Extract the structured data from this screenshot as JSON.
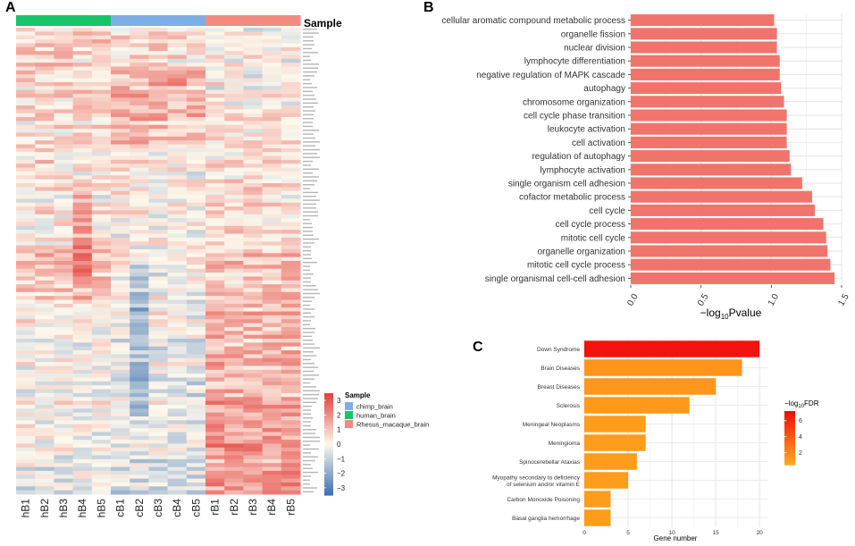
{
  "panels": {
    "a": "A",
    "b": "B",
    "c": "C"
  },
  "colors": {
    "chimp": "#7eaee7",
    "human": "#18c46a",
    "rhesus": "#f38b81",
    "bar_b": "#f0746b",
    "scale_low": "#3f74b4",
    "scale_mid": "#fdf8ec",
    "scale_high": "#e3433f",
    "fdr_low": "#ffa71d",
    "fdr_high": "#f20e0e"
  },
  "chart_data": [
    {
      "type": "heatmap",
      "title": "",
      "annotation_label": "Sample",
      "columns": [
        "hB1",
        "hB2",
        "hB3",
        "hB4",
        "hB5",
        "cB1",
        "cB2",
        "cB3",
        "cB4",
        "cB5",
        "rB1",
        "rB2",
        "rB3",
        "rB4",
        "rB5"
      ],
      "column_groups": [
        "human",
        "human",
        "human",
        "human",
        "human",
        "chimp",
        "chimp",
        "chimp",
        "chimp",
        "chimp",
        "rhesus",
        "rhesus",
        "rhesus",
        "rhesus",
        "rhesus"
      ],
      "rows": 120,
      "value_range": [
        -3.5,
        3.5
      ],
      "colorbar_ticks": [
        "3",
        "2",
        "1",
        "0",
        "-1",
        "-2",
        "-3"
      ],
      "legend": {
        "title": "Sample",
        "entries": [
          {
            "label": "chimp_brain",
            "group": "chimp"
          },
          {
            "label": "human_brain",
            "group": "human"
          },
          {
            "label": "Rhesus_macaque_brain",
            "group": "rhesus"
          }
        ]
      }
    },
    {
      "type": "bar",
      "orientation": "horizontal",
      "categories": [
        "cellular aromatic compound metabolic process",
        "organelle fission",
        "nuclear division",
        "lymphocyte differentiation",
        "negative regulation of MAPK cascade",
        "autophagy",
        "chromosome organization",
        "cell cycle phase transition",
        "leukocyte activation",
        "cell activation",
        "regulation of autophagy",
        "lymphocyte activation",
        "single organism cell adhesion",
        "cofactor metabolic process",
        "cell cycle",
        "cell cycle process",
        "mitotic cell cycle",
        "organelle organization",
        "mitotic cell cycle process",
        "single organismal cell-cell adhesion"
      ],
      "values": [
        1.02,
        1.04,
        1.04,
        1.06,
        1.06,
        1.07,
        1.09,
        1.11,
        1.11,
        1.11,
        1.13,
        1.14,
        1.22,
        1.29,
        1.31,
        1.37,
        1.39,
        1.4,
        1.42,
        1.45
      ],
      "xlim": [
        0,
        1.5
      ],
      "xticks": [
        "0.0",
        "0.5",
        "1.0",
        "1.5"
      ],
      "xlabel_prefix": "−log",
      "xlabel_sub": "10",
      "xlabel_suffix": "Pvalue"
    },
    {
      "type": "bar",
      "orientation": "horizontal",
      "categories": [
        "Down Syndrome",
        "Brain Diseases",
        "Breast Diseases",
        "Sclerosis",
        "Meningeal Neoplasms",
        "Meningioma",
        "Spinocerebellar Ataxias",
        "Myopathy secondary to deficiency of selenium and/or vitamin E",
        "Carbon Monoxide Poisoning",
        "Basal ganglia hemorrhage"
      ],
      "category_lines": [
        [
          "Down Syndrome"
        ],
        [
          "Brain Diseases"
        ],
        [
          "Breast Diseases"
        ],
        [
          "Sclerosis"
        ],
        [
          "Meningeal Neoplasms"
        ],
        [
          "Meningioma"
        ],
        [
          "Spinocerebellar Ataxias"
        ],
        [
          "Myopathy secondary to deficiency",
          "of selenium and/or vitamin E"
        ],
        [
          "Carbon Monoxide Poisoning"
        ],
        [
          "Basal ganglia hemorrhage"
        ]
      ],
      "values": [
        20,
        18,
        15,
        12,
        7,
        7,
        6,
        5,
        3,
        3
      ],
      "fdr": [
        7.0,
        1.3,
        1.2,
        1.1,
        1.0,
        1.0,
        1.0,
        1.0,
        1.0,
        1.0
      ],
      "xlim": [
        0,
        21
      ],
      "xticks": [
        0,
        5,
        10,
        15,
        20
      ],
      "xlabel": "Gene number",
      "legend_prefix": "−log",
      "legend_sub": "10",
      "legend_suffix": "FDR",
      "legend_ticks": [
        "6",
        "4",
        "2"
      ],
      "fdr_range": [
        0.5,
        7.2
      ]
    }
  ]
}
